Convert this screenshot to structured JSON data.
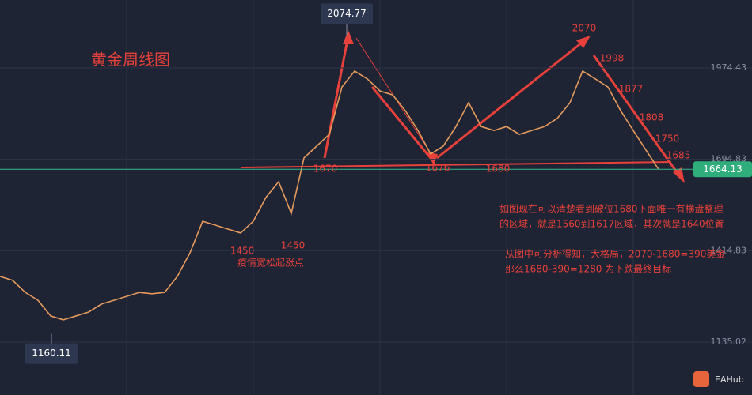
{
  "chart_data": {
    "type": "line",
    "title": "黄金周线图",
    "categories": [
      null,
      null,
      null,
      null,
      null,
      null,
      null,
      null,
      null,
      null,
      null,
      null,
      null,
      null,
      null,
      null,
      null,
      null,
      null,
      null,
      null,
      null,
      null,
      null,
      null,
      null,
      null,
      null,
      null,
      null,
      null,
      null,
      null,
      null,
      null,
      null,
      null,
      null,
      null,
      null,
      null,
      null,
      null,
      null,
      null,
      null,
      null,
      null,
      null,
      null,
      null,
      null,
      null
    ],
    "values": [
      1336,
      1324,
      1287,
      1263,
      1215,
      1203,
      1215,
      1227,
      1251,
      1263,
      1275,
      1287,
      1283,
      1287,
      1336,
      1408,
      1505,
      1493,
      1481,
      1469,
      1505,
      1578,
      1626,
      1529,
      1699,
      1735,
      1771,
      1916,
      1965,
      1941,
      1904,
      1892,
      1844,
      1783,
      1711,
      1735,
      1795,
      1868,
      1795,
      1783,
      1795,
      1771,
      1783,
      1795,
      1820,
      1868,
      1965,
      1941,
      1916,
      1844,
      1783,
      1723,
      1664.13
    ],
    "color": "#e59a5c",
    "ylim": [
      972.9,
      2182.5
    ],
    "yticks": [
      1135.02,
      1414.83,
      1694.83,
      1974.43
    ],
    "grid": true,
    "high": 2074.77,
    "low": 1160.11,
    "last_price": 1664.13,
    "annotations": [
      "2070",
      "1998",
      "1877",
      "1808",
      "1750",
      "1685",
      "1670",
      "1676",
      "1680",
      "1450",
      "1450",
      "疫情宽松起涨点"
    ],
    "notes": [
      "如图现在可以清楚看到破位1680下面唯一有横盘整理",
      "的区域，就是1560到1617区域，其次就是1640位置",
      "从图中可分析得知，大格局，2070-1680=390美金",
      "那么1680-390=1280 为下跌最终目标"
    ],
    "brand": "EAHub"
  }
}
